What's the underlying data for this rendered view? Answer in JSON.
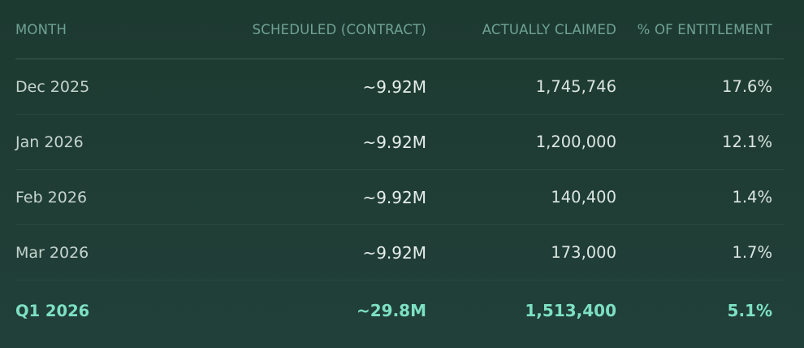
{
  "table": {
    "headers": {
      "month": "MONTH",
      "scheduled": "SCHEDULED (CONTRACT)",
      "claimed": "ACTUALLY CLAIMED",
      "percent": "% OF ENTITLEMENT"
    },
    "rows": [
      {
        "month": "Dec 2025",
        "scheduled": "~9.92M",
        "claimed": "1,745,746",
        "percent": "17.6%"
      },
      {
        "month": "Jan 2026",
        "scheduled": "~9.92M",
        "claimed": "1,200,000",
        "percent": "12.1%"
      },
      {
        "month": "Feb 2026",
        "scheduled": "~9.92M",
        "claimed": "140,400",
        "percent": "1.4%"
      },
      {
        "month": "Mar 2026",
        "scheduled": "~9.92M",
        "claimed": "173,000",
        "percent": "1.7%"
      }
    ],
    "total": {
      "month": "Q1 2026",
      "scheduled": "~29.8M",
      "claimed": "1,513,400",
      "percent": "5.1%"
    }
  },
  "colors": {
    "background": "#1f3d34",
    "header_text": "#6fa293",
    "body_text": "#dbe5e1",
    "total_accent": "#7ee0c3"
  }
}
